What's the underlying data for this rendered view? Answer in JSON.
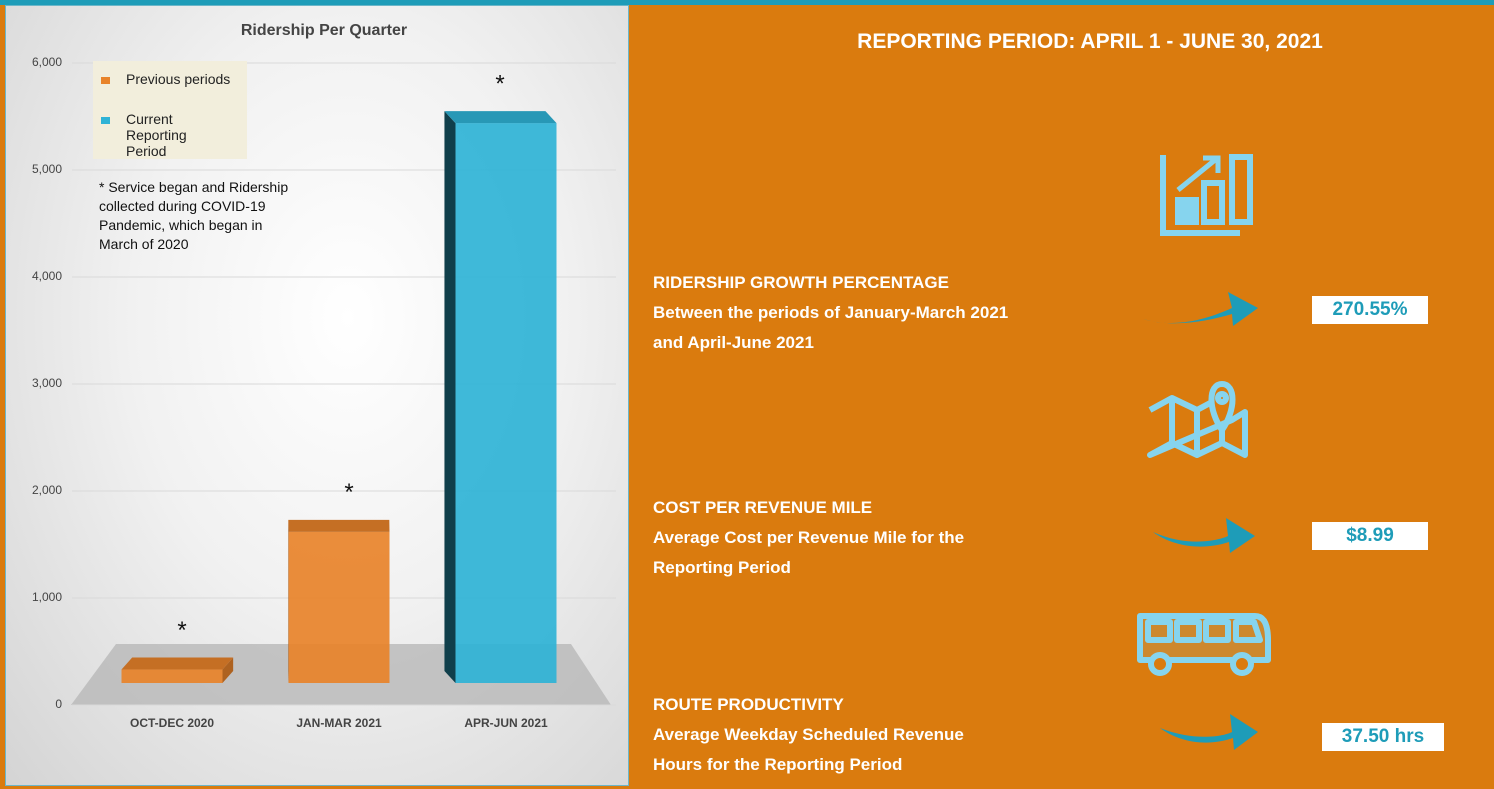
{
  "chart_data": {
    "type": "bar",
    "title": "Ridership Per Quarter",
    "categories": [
      "OCT-DEC 2020",
      "JAN-MAR 2021",
      "APR-JUN 2021"
    ],
    "series": [
      {
        "name": "Previous periods",
        "color": "#E8832A",
        "values": [
          130,
          1460,
          null
        ]
      },
      {
        "name": "Current Reporting Period",
        "color": "#2FB3D6",
        "values": [
          null,
          null,
          5410
        ]
      }
    ],
    "annotations": [
      "*",
      "*",
      "*"
    ],
    "note": "* Service began and Ridership collected during COVID-19 Pandemic, which began in March of 2020",
    "ylim": [
      0,
      6000
    ],
    "yticks": [
      0,
      {
        "value": 1000,
        "label": "1,000"
      },
      {
        "value": 2000,
        "label": "2,000"
      },
      {
        "value": 3000,
        "label": "3,000"
      },
      {
        "value": 4000,
        "label": "4,000"
      },
      {
        "value": 5000,
        "label": "5,000"
      },
      {
        "value": 6000,
        "label": "6,000"
      }
    ],
    "grid": true
  },
  "header": {
    "title": "REPORTING PERIOD: APRIL 1 - JUNE 30, 2021"
  },
  "metrics": [
    {
      "title": "RIDERSHIP GROWTH PERCENTAGE",
      "description": [
        "Between the periods of January-March 2021",
        "and April-June 2021"
      ],
      "value": "270.55%"
    },
    {
      "title": "COST PER REVENUE MILE",
      "description": [
        "Average Cost per Revenue Mile for the",
        "Reporting Period"
      ],
      "value": "$8.99"
    },
    {
      "title": "ROUTE PRODUCTIVITY",
      "description": [
        "Average Weekday Scheduled Revenue",
        "Hours for the Reporting Period"
      ],
      "value": "37.50 hrs"
    }
  ]
}
